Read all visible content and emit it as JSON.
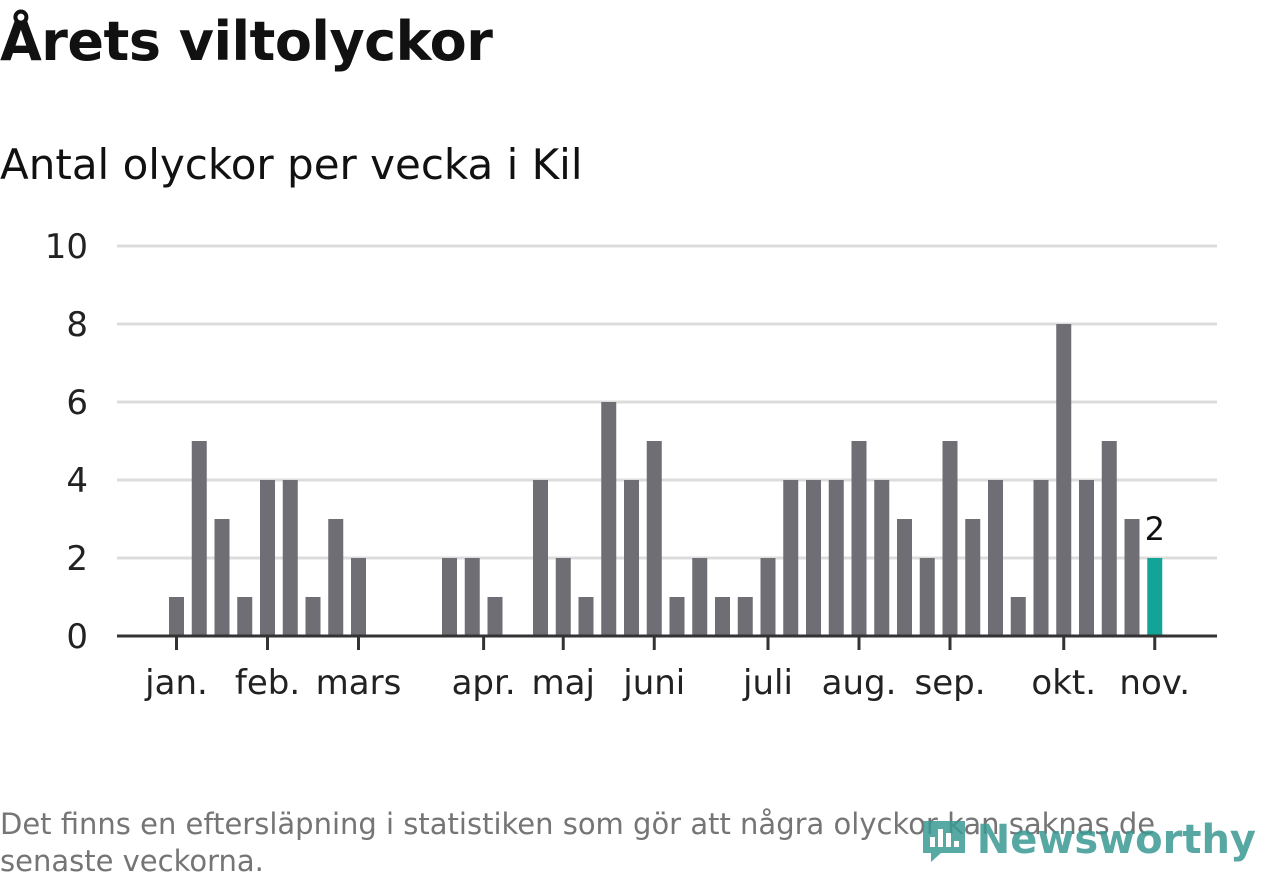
{
  "title": "Årets viltolyckor",
  "subtitle": "Antal olyckor per vecka i Kil",
  "footnote": "Det finns en eftersläpning i statistiken som gör att några olyckor kan saknas de senaste veckorna.",
  "brand": "Newsworthy",
  "colors": {
    "bar": "#6f6e74",
    "highlight": "#12a597",
    "grid": "#dcdcdc",
    "axis": "#333333",
    "text": "#222222",
    "brand": "#3a9a94"
  },
  "chart_data": {
    "type": "bar",
    "title": "Antal olyckor per vecka i Kil",
    "xlabel": "",
    "ylabel": "",
    "ylim": [
      0,
      10
    ],
    "yticks": [
      "0",
      "2",
      "4",
      "6",
      "8",
      "10"
    ],
    "weeks": [
      1,
      2,
      3,
      4,
      5,
      6,
      7,
      8,
      9,
      10,
      11,
      12,
      13,
      14,
      15,
      16,
      17,
      18,
      19,
      20,
      21,
      22,
      23,
      24,
      25,
      26,
      27,
      28,
      29,
      30,
      31,
      32,
      33,
      34,
      35,
      36,
      37,
      38,
      39,
      40,
      41,
      42,
      43,
      44,
      45,
      46
    ],
    "values": [
      1,
      5,
      3,
      1,
      4,
      4,
      1,
      3,
      2,
      0,
      0,
      0,
      2,
      2,
      1,
      0,
      4,
      2,
      1,
      6,
      4,
      5,
      1,
      2,
      1,
      1,
      2,
      4,
      4,
      4,
      5,
      4,
      3,
      2,
      5,
      3,
      4,
      1,
      4,
      8,
      4,
      5,
      3,
      2,
      0,
      0
    ],
    "highlight_index": 43,
    "highlight_label": "2",
    "month_labels": [
      {
        "label": "jan.",
        "week": 1
      },
      {
        "label": "feb.",
        "week": 5
      },
      {
        "label": "mars",
        "week": 9
      },
      {
        "label": "apr.",
        "week": 14.5
      },
      {
        "label": "maj",
        "week": 18
      },
      {
        "label": "juni",
        "week": 22
      },
      {
        "label": "juli",
        "week": 27
      },
      {
        "label": "aug.",
        "week": 31
      },
      {
        "label": "sep.",
        "week": 35
      },
      {
        "label": "okt.",
        "week": 40
      },
      {
        "label": "nov.",
        "week": 44
      }
    ]
  }
}
